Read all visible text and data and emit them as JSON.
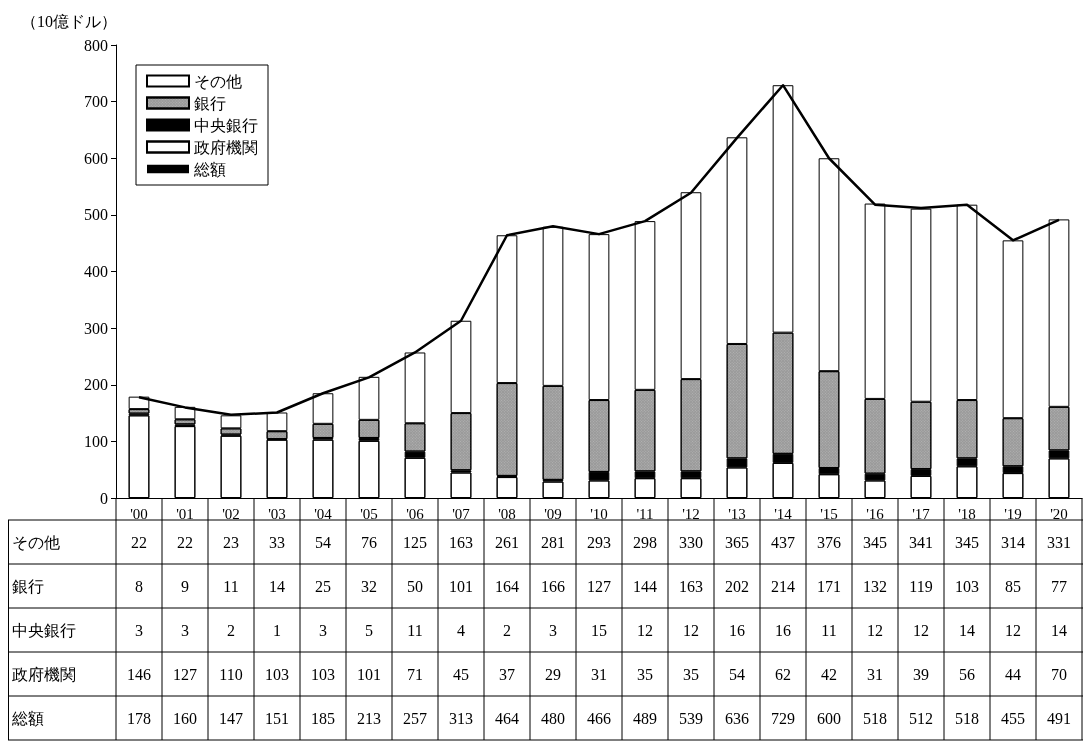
{
  "chart_data": {
    "type": "bar",
    "stacked": true,
    "ylabel": "（10億ドル）",
    "categories": [
      "'00",
      "'01",
      "'02",
      "'03",
      "'04",
      "'05",
      "'06",
      "'07",
      "'08",
      "'09",
      "'10",
      "'11",
      "'12",
      "'13",
      "'14",
      "'15",
      "'16",
      "'17",
      "'18",
      "'19",
      "'20"
    ],
    "series": [
      {
        "name": "政府機関",
        "color": "#ffffff",
        "values": [
          146,
          127,
          110,
          103,
          103,
          101,
          71,
          45,
          37,
          29,
          31,
          35,
          35,
          54,
          62,
          42,
          31,
          39,
          56,
          44,
          70
        ]
      },
      {
        "name": "中央銀行",
        "color": "#000000",
        "values": [
          3,
          3,
          2,
          1,
          3,
          5,
          11,
          4,
          2,
          3,
          15,
          12,
          12,
          16,
          16,
          11,
          12,
          12,
          14,
          12,
          14
        ]
      },
      {
        "name": "銀行",
        "color": "#9a9a9a",
        "values": [
          8,
          9,
          11,
          14,
          25,
          32,
          50,
          101,
          164,
          166,
          127,
          144,
          163,
          202,
          214,
          171,
          132,
          119,
          103,
          85,
          77
        ]
      },
      {
        "name": "その他",
        "color": "#ffffff",
        "values": [
          22,
          22,
          23,
          33,
          54,
          76,
          125,
          163,
          261,
          281,
          293,
          298,
          330,
          365,
          437,
          376,
          345,
          341,
          345,
          314,
          331
        ]
      },
      {
        "name": "総額",
        "type": "line",
        "color": "#000000",
        "values": [
          178,
          160,
          147,
          151,
          185,
          213,
          257,
          313,
          464,
          480,
          466,
          489,
          539,
          636,
          729,
          600,
          518,
          512,
          518,
          455,
          491
        ]
      }
    ],
    "ylim": [
      0,
      800
    ],
    "yticks": [
      0,
      100,
      200,
      300,
      400,
      500,
      600,
      700,
      800
    ],
    "grid": false,
    "legend": "top left",
    "marker": "none",
    "data_labels": true
  }
}
